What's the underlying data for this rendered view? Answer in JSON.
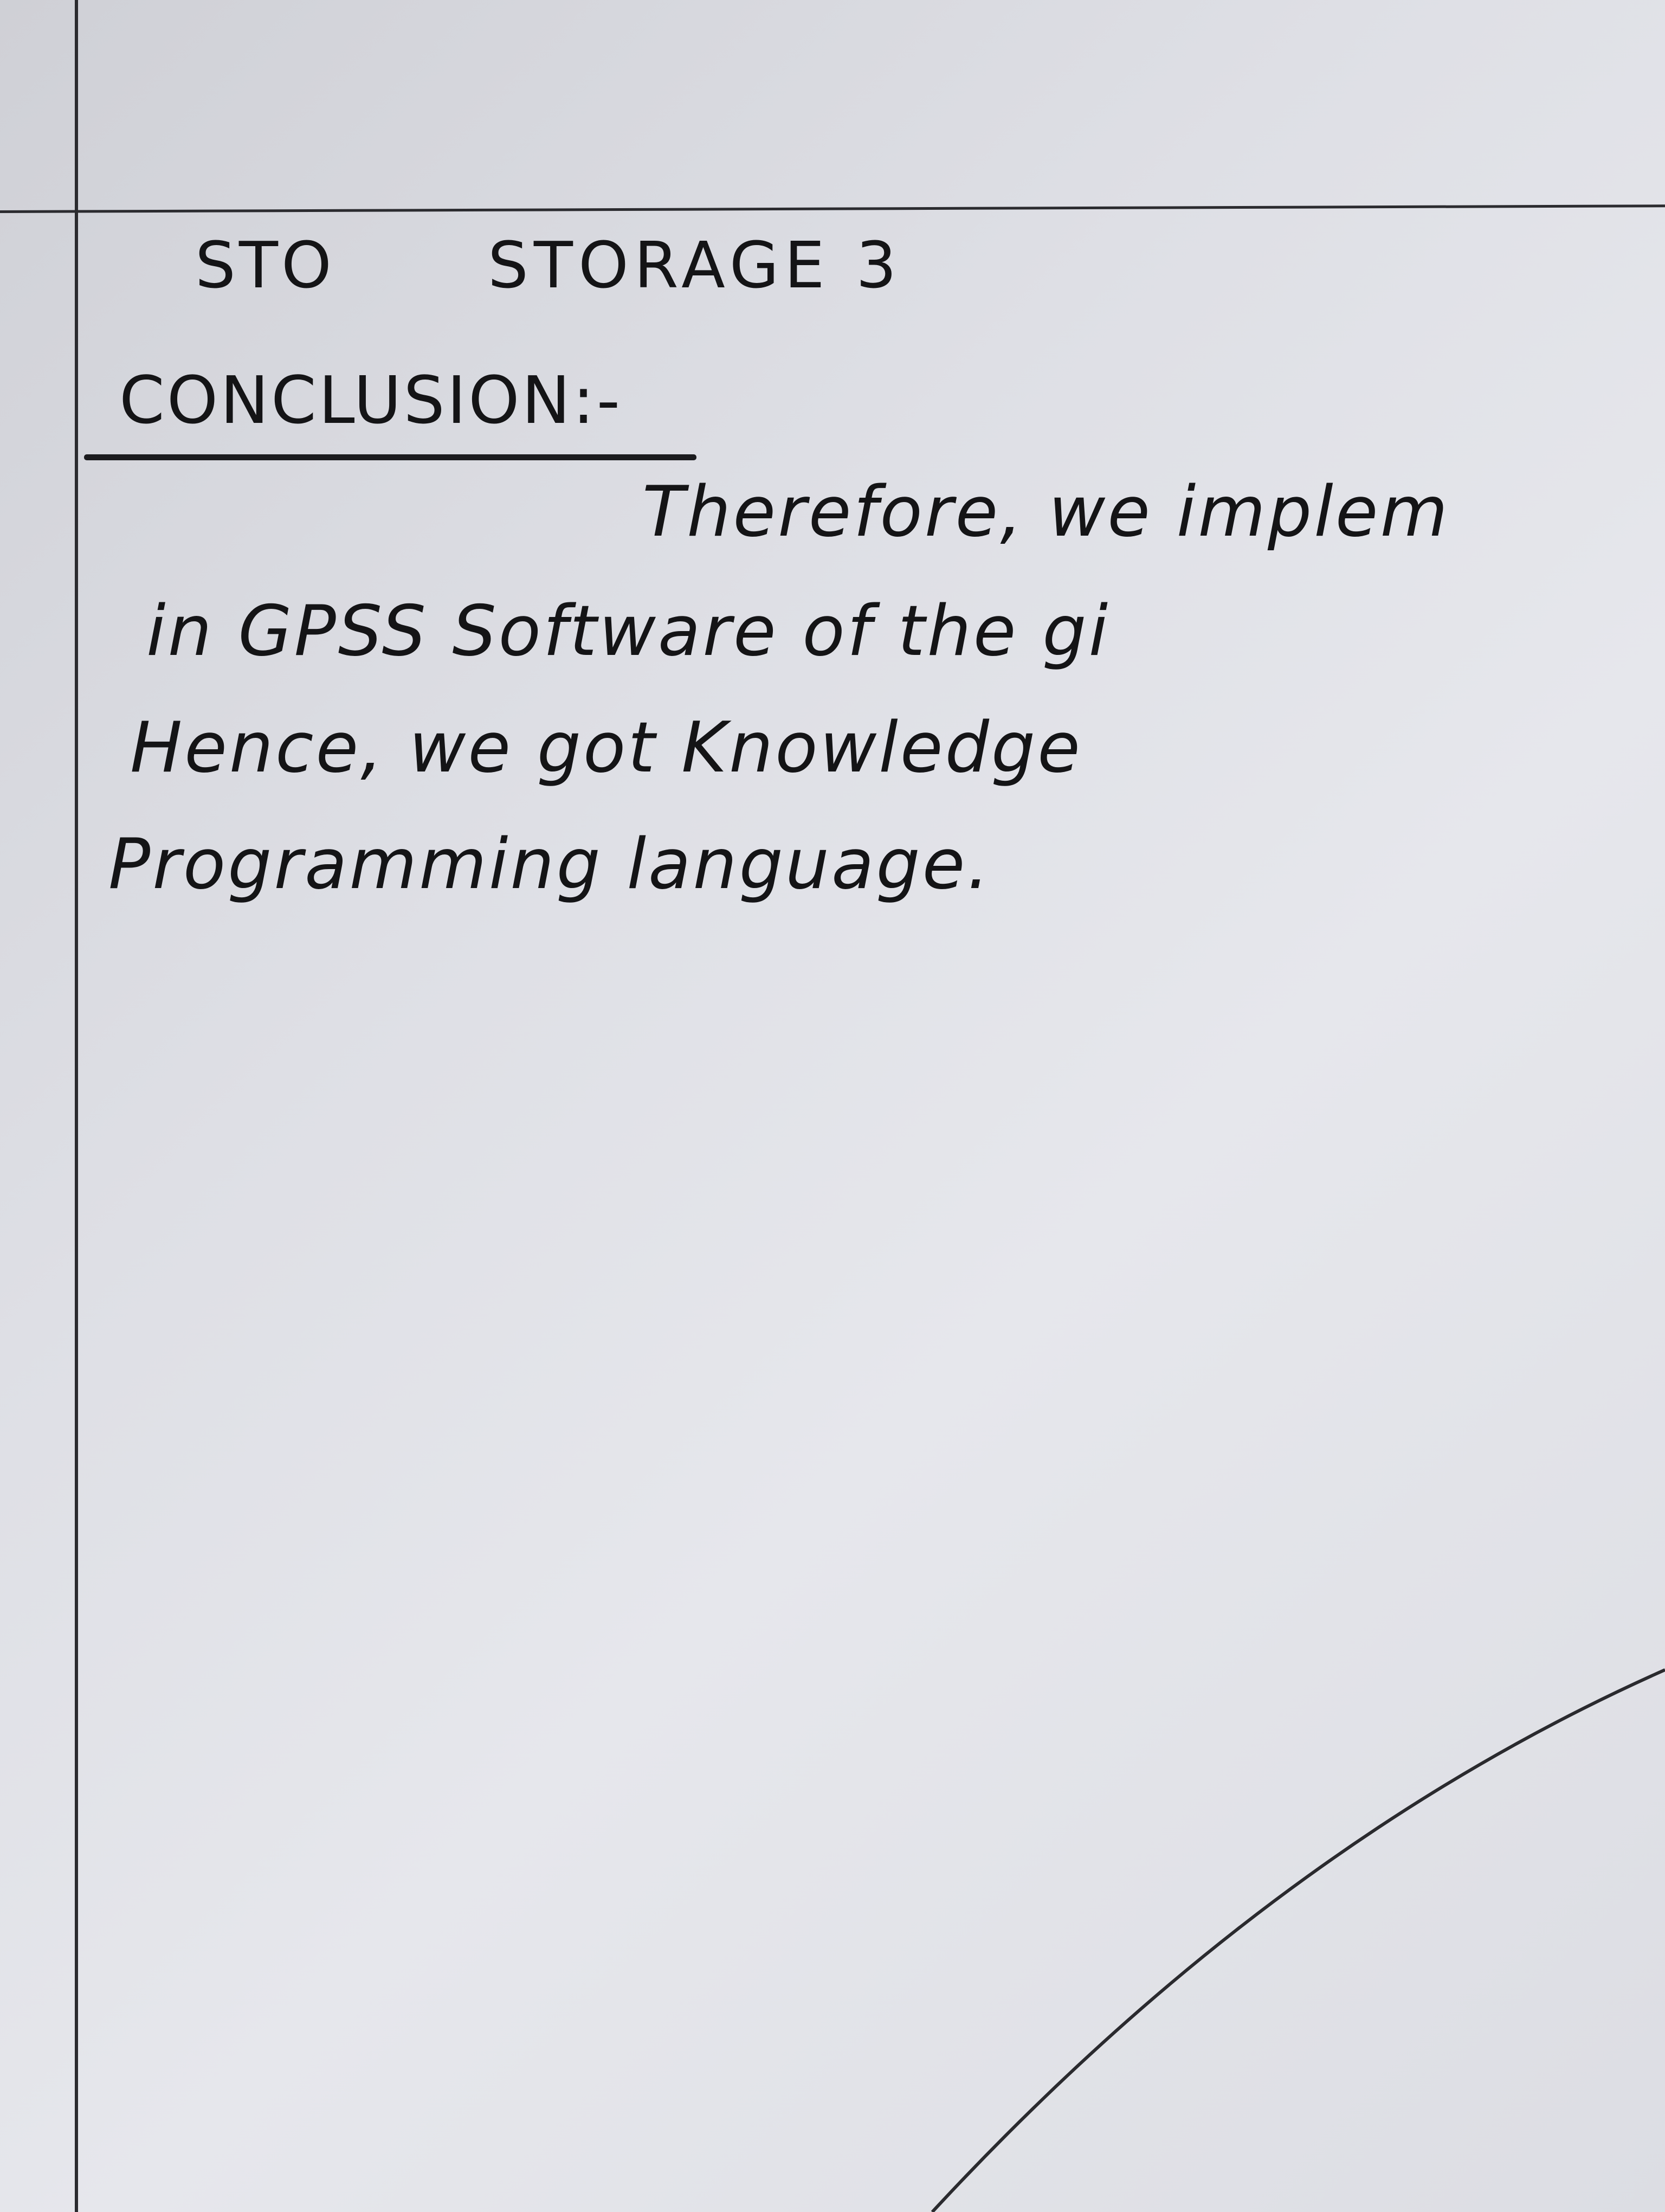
{
  "document": {
    "title_left": "STO",
    "title_right": "STORAGE 3",
    "heading": "CONCLUSION:-",
    "lines": [
      "Therefore, we implem",
      "in GPSS Software of the gi",
      "Hence, we got Knowledge",
      "Programming language."
    ]
  }
}
